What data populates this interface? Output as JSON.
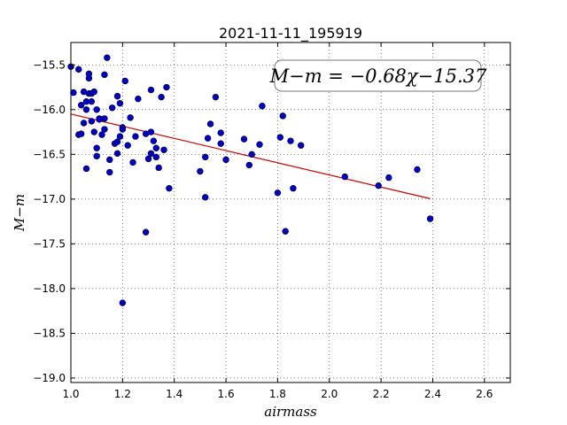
{
  "chart_data": {
    "type": "scatter",
    "title": "2021-11-11_195919",
    "xlabel": "airmass",
    "ylabel": "M−m",
    "annotation": "M−m = −0.68χ−15.37",
    "xlim": [
      1.0,
      2.7
    ],
    "ylim": [
      -19.05,
      -15.25
    ],
    "y_inverted": true,
    "grid": true,
    "x_ticks": [
      1.0,
      1.2,
      1.4,
      1.6,
      1.8,
      2.0,
      2.2,
      2.4,
      2.6
    ],
    "x_tick_labels": [
      "1.0",
      "1.2",
      "1.4",
      "1.6",
      "1.8",
      "2.0",
      "2.2",
      "2.4",
      "2.6"
    ],
    "y_ticks": [
      -15.5,
      -16.0,
      -16.5,
      -17.0,
      -17.5,
      -18.0,
      -18.5,
      -19.0
    ],
    "y_tick_labels": [
      "−15.5",
      "−16.0",
      "−16.5",
      "−17.0",
      "−17.5",
      "−18.0",
      "−18.5",
      "−19.0"
    ],
    "series": [
      {
        "color": "#0000cc",
        "points": [
          [
            1.0,
            -15.52
          ],
          [
            1.01,
            -15.81
          ],
          [
            1.03,
            -15.55
          ],
          [
            1.03,
            -16.28
          ],
          [
            1.04,
            -15.95
          ],
          [
            1.04,
            -16.27
          ],
          [
            1.05,
            -16.15
          ],
          [
            1.05,
            -15.8
          ],
          [
            1.06,
            -16.0
          ],
          [
            1.06,
            -15.91
          ],
          [
            1.06,
            -16.66
          ],
          [
            1.07,
            -15.6
          ],
          [
            1.07,
            -15.82
          ],
          [
            1.07,
            -15.65
          ],
          [
            1.08,
            -15.91
          ],
          [
            1.08,
            -15.82
          ],
          [
            1.08,
            -16.13
          ],
          [
            1.09,
            -16.25
          ],
          [
            1.09,
            -15.8
          ],
          [
            1.1,
            -16.0
          ],
          [
            1.1,
            -16.52
          ],
          [
            1.1,
            -16.43
          ],
          [
            1.11,
            -16.1
          ],
          [
            1.11,
            -16.11
          ],
          [
            1.12,
            -16.28
          ],
          [
            1.13,
            -16.22
          ],
          [
            1.13,
            -15.61
          ],
          [
            1.13,
            -16.1
          ],
          [
            1.14,
            -15.42
          ],
          [
            1.15,
            -16.56
          ],
          [
            1.15,
            -16.7
          ],
          [
            1.16,
            -15.98
          ],
          [
            1.17,
            -16.38
          ],
          [
            1.18,
            -15.85
          ],
          [
            1.18,
            -16.36
          ],
          [
            1.18,
            -16.49
          ],
          [
            1.19,
            -15.93
          ],
          [
            1.19,
            -16.3
          ],
          [
            1.2,
            -16.2
          ],
          [
            1.2,
            -18.16
          ],
          [
            1.2,
            -16.22
          ],
          [
            1.21,
            -15.68
          ],
          [
            1.22,
            -16.4
          ],
          [
            1.23,
            -16.09
          ],
          [
            1.24,
            -16.59
          ],
          [
            1.25,
            -16.3
          ],
          [
            1.26,
            -15.88
          ],
          [
            1.29,
            -16.27
          ],
          [
            1.29,
            -17.37
          ],
          [
            1.3,
            -16.55
          ],
          [
            1.31,
            -15.78
          ],
          [
            1.31,
            -16.25
          ],
          [
            1.31,
            -16.49
          ],
          [
            1.32,
            -16.35
          ],
          [
            1.33,
            -16.53
          ],
          [
            1.33,
            -16.43
          ],
          [
            1.34,
            -16.65
          ],
          [
            1.35,
            -15.86
          ],
          [
            1.36,
            -16.45
          ],
          [
            1.37,
            -15.75
          ],
          [
            1.38,
            -16.88
          ],
          [
            1.5,
            -16.69
          ],
          [
            1.52,
            -16.98
          ],
          [
            1.52,
            -16.53
          ],
          [
            1.53,
            -16.32
          ],
          [
            1.54,
            -16.16
          ],
          [
            1.56,
            -15.86
          ],
          [
            1.58,
            -16.26
          ],
          [
            1.58,
            -16.38
          ],
          [
            1.6,
            -16.56
          ],
          [
            1.67,
            -16.33
          ],
          [
            1.69,
            -16.62
          ],
          [
            1.7,
            -16.5
          ],
          [
            1.73,
            -16.39
          ],
          [
            1.74,
            -15.96
          ],
          [
            1.8,
            -16.93
          ],
          [
            1.81,
            -16.31
          ],
          [
            1.82,
            -16.07
          ],
          [
            1.83,
            -17.36
          ],
          [
            1.85,
            -16.35
          ],
          [
            1.86,
            -16.88
          ],
          [
            1.89,
            -16.4
          ],
          [
            2.06,
            -16.75
          ],
          [
            2.19,
            -16.85
          ],
          [
            2.23,
            -16.76
          ],
          [
            2.34,
            -16.67
          ],
          [
            2.39,
            -17.22
          ]
        ]
      }
    ],
    "fit_line": {
      "x": [
        1.0,
        2.39
      ],
      "color": "#cc0000"
    }
  }
}
